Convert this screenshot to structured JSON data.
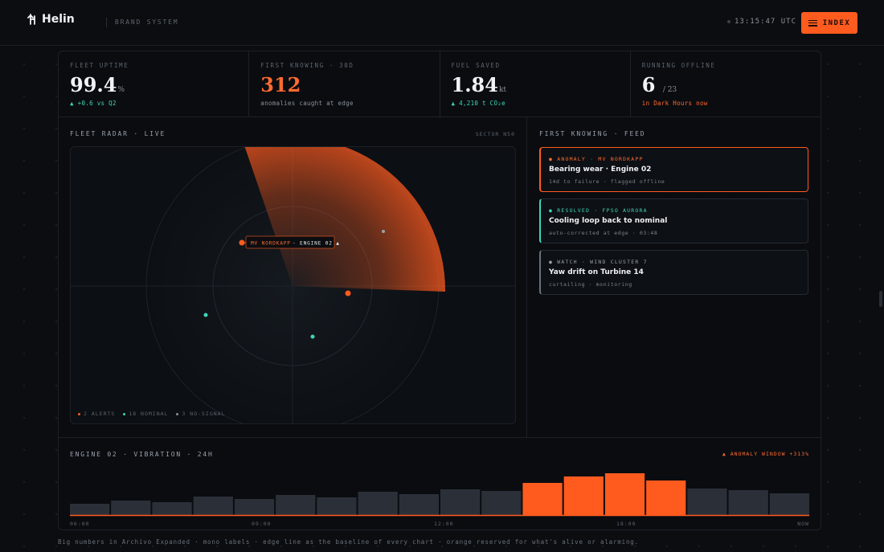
{
  "header": {
    "logo_text": "Helin",
    "brand_label": "BRAND SYSTEM",
    "clock": "13:15:47 UTC",
    "index_label": "INDEX"
  },
  "stats": [
    {
      "label": "FLEET UPTIME",
      "value": "99.4",
      "unit": "%",
      "sub": "▲ +0.6 vs Q2",
      "accent": "white",
      "sub_tone": "green"
    },
    {
      "label": "FIRST KNOWING · 30D",
      "value": "312",
      "unit": "",
      "sub": "anomalies caught at edge",
      "accent": "orange",
      "sub_tone": "grey"
    },
    {
      "label": "FUEL SAVED",
      "value": "1.84",
      "unit": "kt",
      "sub": "▲ 4,210 t CO₂e",
      "accent": "white",
      "sub_tone": "green"
    },
    {
      "label": "RUNNING OFFLINE",
      "value": "6",
      "unit": "/ 23",
      "sub": "in Dark Hours now",
      "accent": "white",
      "sub_tone": "orange"
    }
  ],
  "radar": {
    "title": "FLEET RADAR · LIVE",
    "sector": "SECTOR N50",
    "callout_vessel": "MV NORDKAPP",
    "callout_detail": "· ENGINE 02 ▲",
    "legend": [
      {
        "label": "2 ALERTS",
        "color": "#ff5b1f"
      },
      {
        "label": "18 NOMINAL",
        "color": "#3ed6b8"
      },
      {
        "label": "3 NO-SIGNAL",
        "color": "#8a919b"
      }
    ]
  },
  "feed": {
    "title": "FIRST KNOWING · FEED",
    "items": [
      {
        "tag": "● ANOMALY · MV NORDKAPP",
        "title": "Bearing wear · Engine 02",
        "meta": "14d to failure · flagged offline",
        "color": "#ff5b1f"
      },
      {
        "tag": "● RESOLVED · FPSO AURORA",
        "title": "Cooling loop back to nominal",
        "meta": "auto-corrected at edge · 03:48",
        "color": "#3ed6b8"
      },
      {
        "tag": "● WATCH · WIND CLUSTER 7",
        "title": "Yaw drift on Turbine 14",
        "meta": "curtailing · monitoring",
        "color": "#9aa1ab"
      }
    ]
  },
  "vibration": {
    "title": "ENGINE 02 · VIBRATION · 24H",
    "anomaly_label": "▲ ANOMALY WINDOW +313%"
  },
  "chart_data": {
    "type": "bar",
    "title": "ENGINE 02 · VIBRATION · 24H",
    "x_tick_labels": [
      "06:00",
      "09:00",
      "12:00",
      "18:00",
      "NOW"
    ],
    "values": [
      14,
      18,
      16,
      23,
      20,
      25,
      22,
      29,
      26,
      32,
      30,
      40,
      48,
      52,
      43,
      33,
      31,
      27
    ],
    "anomaly_range": [
      11,
      14
    ],
    "colors": {
      "normal": "#2b3038",
      "anomaly": "#ff5b1f",
      "baseline": "#ff5b1f"
    }
  },
  "footnote": "Big numbers in Archivo Expanded · mono labels · edge line as the baseline of every chart · orange reserved for what's alive or alarming."
}
